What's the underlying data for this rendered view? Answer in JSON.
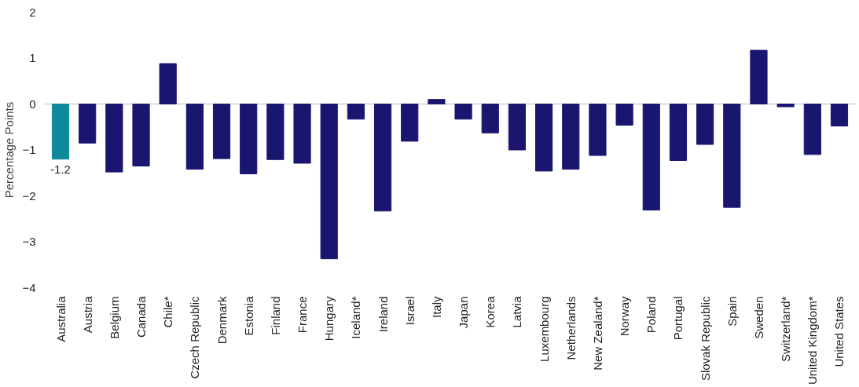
{
  "chart_data": {
    "type": "bar",
    "ylabel": "Percentage Points",
    "categories": [
      "Australia",
      "Austria",
      "Belgium",
      "Canada",
      "Chile*",
      "Czech Republic",
      "Denmark",
      "Estonia",
      "Finland",
      "France",
      "Hungary",
      "Iceland*",
      "Ireland",
      "Israel",
      "Italy",
      "Japan",
      "Korea",
      "Latvia",
      "Luxembourg",
      "Netherlands",
      "New Zealand*",
      "Norway",
      "Poland",
      "Portugal",
      "Slovak Republic",
      "Spain",
      "Sweden",
      "Switzerland*",
      "United Kingdom*",
      "United States"
    ],
    "values": [
      -1.2,
      -0.85,
      -1.48,
      -1.35,
      0.88,
      -1.42,
      -1.19,
      -1.52,
      -1.21,
      -1.29,
      -3.37,
      -0.33,
      -2.33,
      -0.81,
      0.1,
      -0.33,
      -0.63,
      -1.0,
      -1.46,
      -1.42,
      -1.12,
      -0.46,
      -2.31,
      -1.23,
      -0.88,
      -2.25,
      1.17,
      -0.06,
      -1.1,
      -0.48
    ],
    "colors": [
      "#0e8a9a",
      "#1a1670",
      "#1a1670",
      "#1a1670",
      "#1a1670",
      "#1a1670",
      "#1a1670",
      "#1a1670",
      "#1a1670",
      "#1a1670",
      "#1a1670",
      "#1a1670",
      "#1a1670",
      "#1a1670",
      "#1a1670",
      "#1a1670",
      "#1a1670",
      "#1a1670",
      "#1a1670",
      "#1a1670",
      "#1a1670",
      "#1a1670",
      "#1a1670",
      "#1a1670",
      "#1a1670",
      "#1a1670",
      "#1a1670",
      "#1a1670",
      "#1a1670",
      "#1a1670"
    ],
    "value_labels": [
      "-1.2",
      null,
      null,
      null,
      null,
      null,
      null,
      null,
      null,
      null,
      null,
      null,
      null,
      null,
      null,
      null,
      null,
      null,
      null,
      null,
      null,
      null,
      null,
      null,
      null,
      null,
      null,
      null,
      null,
      null
    ],
    "ref_lines": [
      {
        "axis": "y",
        "value": 0,
        "color": "#bbbbbb"
      }
    ],
    "ylim": [
      -4,
      2
    ],
    "yticks": [
      -4,
      -3,
      -2,
      -1,
      0,
      1,
      2
    ],
    "grid": false
  }
}
